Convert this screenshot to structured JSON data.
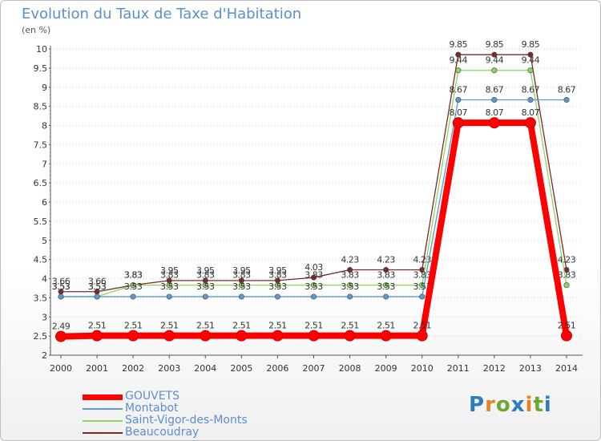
{
  "chart_data": {
    "type": "line",
    "title": "Evolution du Taux de Taxe d'Habitation",
    "subtitle": "(en %)",
    "xlabel": "",
    "ylabel": "(en %)",
    "ylim": [
      2,
      10
    ],
    "yticks": [
      "2",
      "2.5",
      "3",
      "3.5",
      "4",
      "4.5",
      "5",
      "5.5",
      "6",
      "6.5",
      "7",
      "7.5",
      "8",
      "8.5",
      "9",
      "9.5",
      "10"
    ],
    "categories": [
      "2000",
      "2001",
      "2002",
      "2003",
      "2004",
      "2005",
      "2006",
      "2007",
      "2008",
      "2009",
      "2010",
      "2011",
      "2012",
      "2013",
      "2014"
    ],
    "series": [
      {
        "name": "Beaucoudray",
        "color": "#7a2a2a",
        "values": [
          3.66,
          3.66,
          3.83,
          3.95,
          3.95,
          3.95,
          3.95,
          4.03,
          4.23,
          4.23,
          4.23,
          9.85,
          9.85,
          9.85,
          4.23
        ],
        "labels": [
          "3.66",
          "3.66",
          "3.83",
          "3.95",
          "3.95",
          "3.95",
          "3.95",
          "4.03",
          "4.23",
          "4.23",
          "4.23",
          "9.85",
          "9.85",
          "9.85",
          "4.23"
        ]
      },
      {
        "name": "Saint-Vigor-des-Monts",
        "color": "#8fd460",
        "values": [
          3.53,
          3.53,
          3.83,
          3.83,
          3.83,
          3.83,
          3.83,
          3.83,
          3.83,
          3.83,
          3.83,
          9.44,
          9.44,
          9.44,
          3.83
        ],
        "labels": [
          "3.53",
          "3.53",
          "3.83",
          "3.83",
          "3.83",
          "3.83",
          "3.83",
          "3.83",
          "3.83",
          "3.83",
          "3.83",
          "9.44",
          "9.44",
          "9.44",
          "3.83"
        ]
      },
      {
        "name": "Montabot",
        "color": "#5a9ad0",
        "values": [
          3.53,
          3.53,
          3.53,
          3.53,
          3.53,
          3.53,
          3.53,
          3.53,
          3.53,
          3.53,
          3.53,
          8.67,
          8.67,
          8.67,
          8.67
        ],
        "labels": [
          "3.53",
          "3.53",
          "3.53",
          "3.53",
          "3.53",
          "3.53",
          "3.53",
          "3.53",
          "3.53",
          "3.53",
          "3.53",
          "8.67",
          "8.67",
          "8.67",
          "8.67"
        ],
        "hide_labels": [
          false,
          false,
          false,
          false,
          false,
          false,
          false,
          false,
          false,
          false,
          false,
          false,
          false,
          false,
          false
        ]
      },
      {
        "name": "GOUVETS",
        "color": "#ff0000",
        "values": [
          2.49,
          2.51,
          2.51,
          2.51,
          2.51,
          2.51,
          2.51,
          2.51,
          2.51,
          2.51,
          2.51,
          8.07,
          8.07,
          8.07,
          2.51
        ],
        "labels": [
          "2.49",
          "2.51",
          "2.51",
          "2.51",
          "2.51",
          "2.51",
          "2.51",
          "2.51",
          "2.51",
          "2.51",
          "2.51",
          "8.07",
          "8.07",
          "8.07",
          "2.51"
        ]
      }
    ],
    "legend": [
      {
        "name": "GOUVETS",
        "color": "#ff0000"
      },
      {
        "name": "Montabot",
        "color": "#5a9ad0"
      },
      {
        "name": "Saint-Vigor-des-Monts",
        "color": "#8fd460"
      },
      {
        "name": "Beaucoudray",
        "color": "#7a2a2a"
      }
    ],
    "legend_position": "bottom-left"
  },
  "logo": {
    "p": "P",
    "r": "r",
    "o": "o",
    "x": "x",
    "i1": "i",
    "t": "t",
    "i2": "i"
  }
}
